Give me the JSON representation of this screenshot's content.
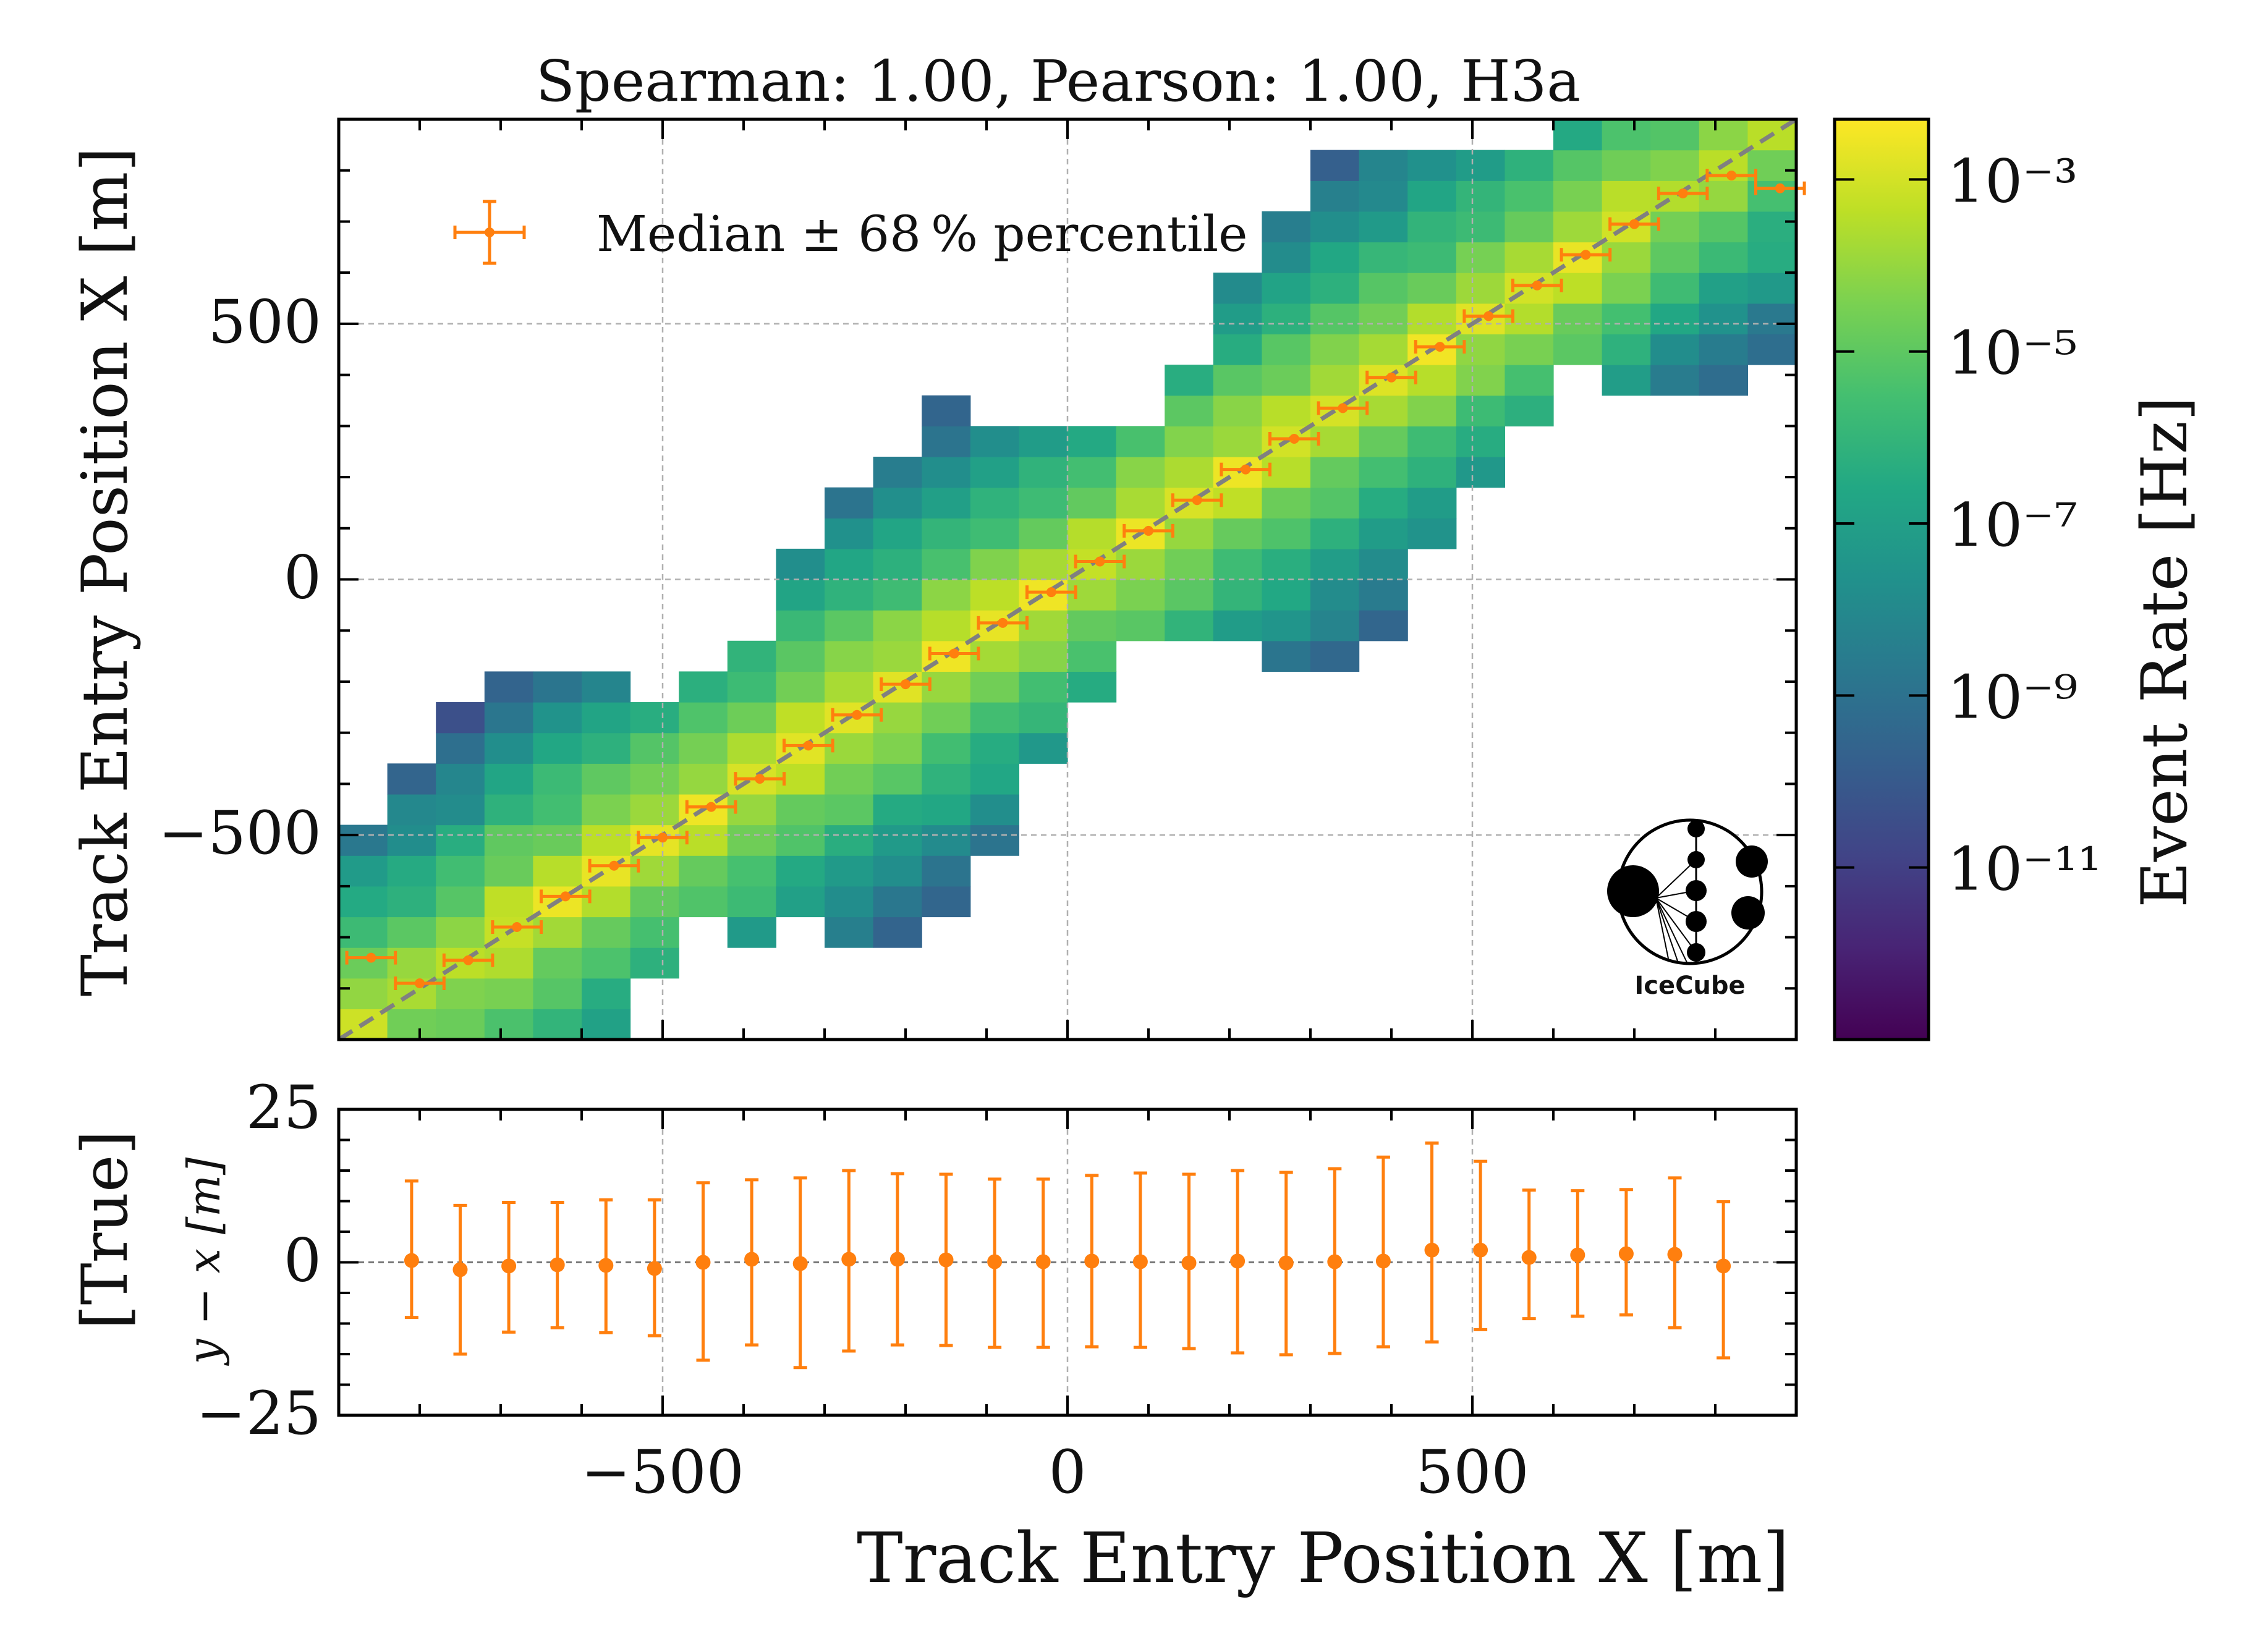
{
  "chart_data": [
    {
      "type": "heatmap",
      "title": "Spearman: 1.00, Pearson: 1.00, H3a",
      "xlabel": "",
      "ylabel": "Track Entry Position X [m]",
      "xlim": [
        -900,
        900
      ],
      "ylim": [
        -900,
        900
      ],
      "xticks": [
        -500,
        0,
        500
      ],
      "yticks": [
        -500,
        0,
        500
      ],
      "ytick_labels": [
        "−500",
        "0",
        "500"
      ],
      "grid": true,
      "diagonal": "y = x",
      "legend": {
        "placement": "top-left",
        "entries": [
          "Median ± 68 % percentile"
        ]
      },
      "band": {
        "bin_width": 60,
        "description": "entries concentrated along y = x; log color scale",
        "peak_log10_rate": -2.5
      },
      "median": {
        "x": [
          -860,
          -800,
          -740,
          -680,
          -620,
          -560,
          -500,
          -440,
          -380,
          -320,
          -260,
          -200,
          -140,
          -80,
          -20,
          40,
          100,
          160,
          220,
          280,
          340,
          400,
          460,
          520,
          580,
          640,
          700,
          760,
          820,
          880
        ],
        "y": [
          -740,
          -790,
          -745,
          -680,
          -620,
          -560,
          -505,
          -445,
          -390,
          -325,
          -265,
          -205,
          -145,
          -85,
          -25,
          35,
          95,
          155,
          215,
          275,
          335,
          395,
          455,
          515,
          575,
          635,
          695,
          755,
          790,
          765
        ],
        "xerr": 30,
        "yerr": [
          6,
          5,
          6,
          5,
          6,
          5,
          6,
          5,
          6,
          5,
          6,
          5,
          6,
          5,
          6,
          5,
          6,
          5,
          6,
          5,
          6,
          5,
          6,
          5,
          6,
          5,
          6,
          5,
          6,
          6
        ]
      },
      "colorbar": {
        "label": "Event Rate [Hz]",
        "scale": "log",
        "range_log10": [
          -13,
          -2.3
        ],
        "ticks_log10": [
          -3,
          -5,
          -7,
          -9,
          -11
        ],
        "tick_labels": [
          "10⁻³",
          "10⁻⁵",
          "10⁻⁷",
          "10⁻⁹",
          "10⁻¹¹"
        ],
        "colormap": "viridis"
      }
    },
    {
      "type": "scatter",
      "xlabel": "Track Entry Position X [m]",
      "ylabel": "[True]",
      "ylabel_math": "y − x [m]",
      "xlim": [
        -900,
        900
      ],
      "ylim": [
        -25,
        25
      ],
      "xticks": [
        -500,
        0,
        500
      ],
      "xtick_labels": [
        "−500",
        "0",
        "500"
      ],
      "yticks": [
        25,
        0,
        -25
      ],
      "ytick_labels": [
        "25",
        "0",
        "−25"
      ],
      "grid": true,
      "x": [
        -810,
        -750,
        -690,
        -630,
        -570,
        -510,
        -450,
        -390,
        -330,
        -270,
        -210,
        -150,
        -90,
        -30,
        30,
        90,
        150,
        210,
        270,
        330,
        390,
        450,
        510,
        570,
        630,
        690,
        750,
        810
      ],
      "y": [
        0.3,
        -1.2,
        -0.6,
        -0.4,
        -0.5,
        -1.0,
        0.0,
        0.5,
        -0.2,
        0.5,
        0.5,
        0.4,
        0.1,
        0.1,
        0.2,
        0.1,
        -0.1,
        0.2,
        -0.1,
        0.1,
        0.2,
        2.0,
        2.0,
        0.8,
        1.2,
        1.4,
        1.3,
        -0.6
      ],
      "yerr_low": [
        9.3,
        13.8,
        10.8,
        10.3,
        11.0,
        11.0,
        16.0,
        14.0,
        17.0,
        15.0,
        14.0,
        14.0,
        14.0,
        14.0,
        14.0,
        14.0,
        14.0,
        15.0,
        15.0,
        15.0,
        14.0,
        15.0,
        13.0,
        10.0,
        10.0,
        10.0,
        12.0,
        15.0
      ],
      "yerr_high": [
        13.0,
        10.5,
        10.4,
        10.2,
        10.7,
        11.2,
        13.0,
        13.0,
        14.0,
        14.5,
        14.0,
        14.0,
        13.5,
        13.5,
        14.0,
        14.5,
        14.5,
        14.8,
        14.8,
        15.2,
        17.0,
        17.5,
        14.5,
        11.0,
        10.5,
        10.5,
        12.5,
        10.5
      ],
      "color": "#ff7f0e"
    }
  ],
  "logo": {
    "text": "IceCube",
    "icon": "icecube-logo-icon"
  },
  "colors": {
    "accent": "#ff7f0e",
    "diagonal": "#808080",
    "grid": "#b0b0b0"
  }
}
